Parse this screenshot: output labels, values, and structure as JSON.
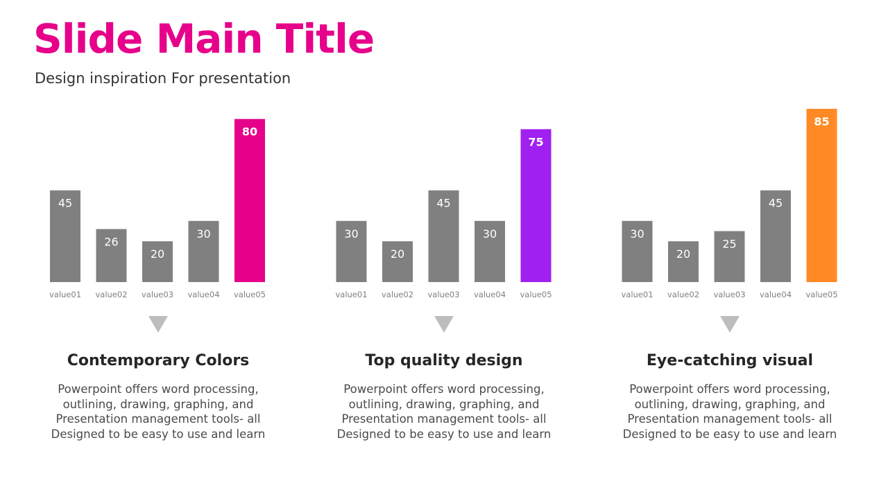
{
  "slide": {
    "title": "Slide Main Title",
    "subtitle": "Design inspiration For presentation"
  },
  "colors": {
    "title": "#E6008A",
    "bar_default": "#808080",
    "highlight": [
      "#E6008A",
      "#A020F0",
      "#FF8A25"
    ],
    "triangle": "#BDBDBD"
  },
  "chart_data": [
    {
      "type": "bar",
      "categories": [
        "value01",
        "value02",
        "value03",
        "value04",
        "value05"
      ],
      "values": [
        45,
        26,
        20,
        30,
        80
      ],
      "highlight_index": 4,
      "title": "",
      "xlabel": "",
      "ylabel": "",
      "ylim": [
        0,
        85
      ],
      "grid": false
    },
    {
      "type": "bar",
      "categories": [
        "value01",
        "value02",
        "value03",
        "value04",
        "value05"
      ],
      "values": [
        30,
        20,
        45,
        30,
        75
      ],
      "highlight_index": 4,
      "title": "",
      "xlabel": "",
      "ylabel": "",
      "ylim": [
        0,
        85
      ],
      "grid": false
    },
    {
      "type": "bar",
      "categories": [
        "value01",
        "value02",
        "value03",
        "value04",
        "value05"
      ],
      "values": [
        30,
        20,
        25,
        45,
        85
      ],
      "highlight_index": 4,
      "title": "",
      "xlabel": "",
      "ylabel": "",
      "ylim": [
        0,
        85
      ],
      "grid": false
    }
  ],
  "captions": [
    {
      "title": "Contemporary Colors",
      "lines": [
        "Powerpoint offers word processing,",
        "outlining, drawing, graphing, and",
        "Presentation management tools- all",
        "Designed to be easy to use and learn"
      ]
    },
    {
      "title": "Top quality design",
      "lines": [
        "Powerpoint offers word processing,",
        "outlining, drawing, graphing, and",
        "Presentation management tools- all",
        "Designed to be easy to use and learn"
      ]
    },
    {
      "title": "Eye-catching visual",
      "lines": [
        "Powerpoint offers word processing,",
        "outlining, drawing, graphing, and",
        "Presentation management tools- all",
        "Designed to be easy to use and learn"
      ]
    }
  ]
}
